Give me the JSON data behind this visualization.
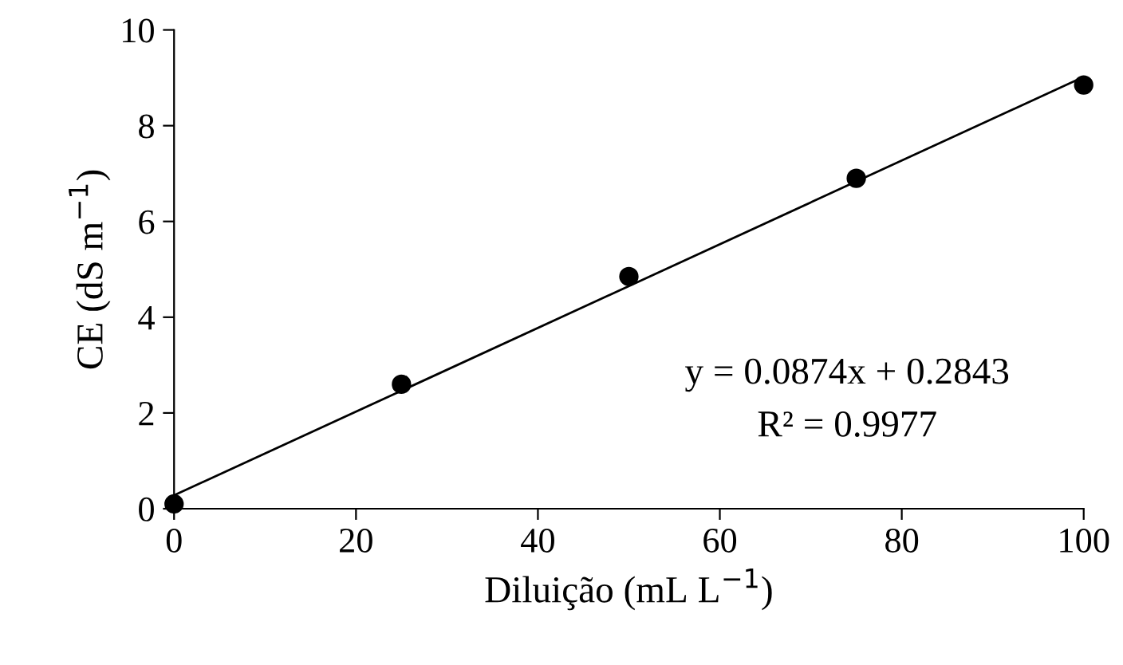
{
  "chart_data": {
    "type": "scatter",
    "xlabel": "Diluição (mL L$^{−1}$)",
    "ylabel": "CE (dS m$^{−1}$)",
    "xlim": [
      0,
      100
    ],
    "ylim": [
      0,
      10
    ],
    "xticks": [
      0,
      20,
      40,
      60,
      80,
      100
    ],
    "yticks": [
      0,
      2,
      4,
      6,
      8,
      10
    ],
    "grid": false,
    "legend": false,
    "marker": "circle",
    "series": [
      {
        "color": "#000000",
        "x": [
          0,
          25,
          50,
          75,
          100
        ],
        "values": [
          0.1,
          2.6,
          4.85,
          6.9,
          8.85
        ]
      },
      {
        "type": "line",
        "color": "#000000",
        "x": [
          0,
          100
        ],
        "values": [
          0.28,
          9.02
        ],
        "marker": "none",
        "line_style": "solid"
      }
    ],
    "annotations": [
      "y = 0.0874x + 0.2843",
      "R² = 0.9977"
    ]
  }
}
